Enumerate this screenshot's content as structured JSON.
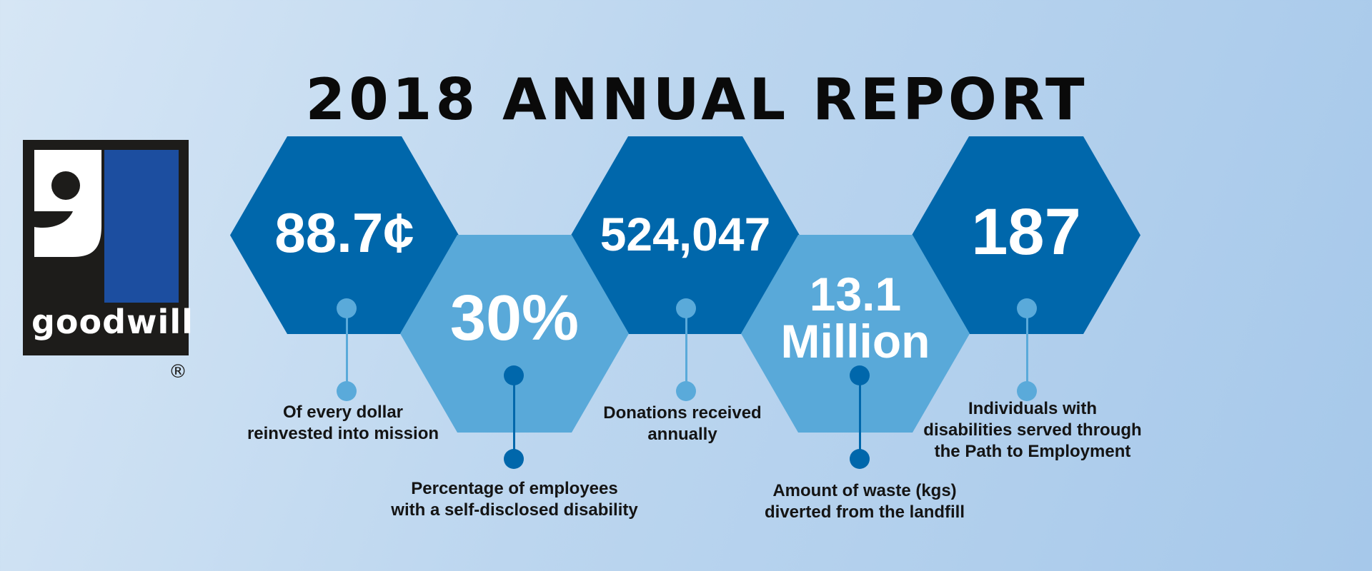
{
  "title": "2018 ANNUAL REPORT",
  "logo": {
    "wordmark": "goodwill",
    "registered": "®"
  },
  "colors": {
    "dark_hex": "#0067ab",
    "light_hex": "#59a9d9",
    "logo_blue": "#1c4ea0"
  },
  "stats": [
    {
      "value": "88.7¢",
      "caption": [
        "Of every dollar",
        "reinvested into mission"
      ]
    },
    {
      "value": "30%",
      "caption": [
        "Percentage of employees",
        "with a self-disclosed disability"
      ]
    },
    {
      "value": "524,047",
      "caption": [
        "Donations received",
        "annually"
      ]
    },
    {
      "value_line1": "13.1",
      "value_line2": "Million",
      "caption": [
        "Amount of waste (kgs)",
        "diverted from the landfill"
      ]
    },
    {
      "value": "187",
      "caption": [
        "Individuals with",
        "disabilities served through",
        "the Path to Employment"
      ]
    }
  ]
}
